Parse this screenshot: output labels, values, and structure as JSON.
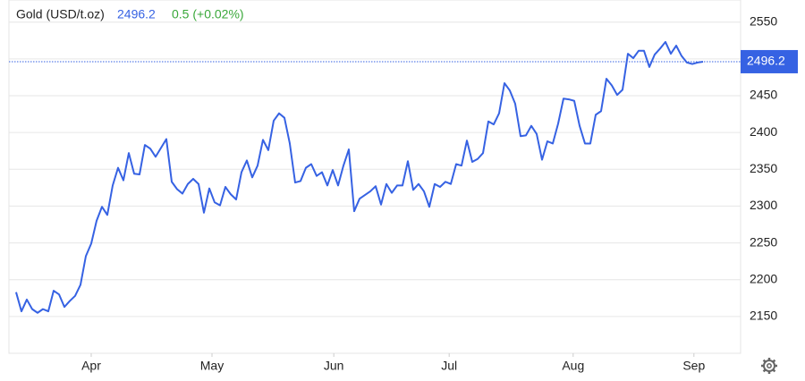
{
  "chart_data": {
    "type": "line",
    "title": "Gold (USD/t.oz)",
    "last_price": 2496.2,
    "change": "0.5 (+0.02%)",
    "series": [
      {
        "name": "Gold",
        "color": "#3662e3",
        "values": [
          2183,
          2157,
          2173,
          2160,
          2155,
          2160,
          2157,
          2185,
          2180,
          2163,
          2171,
          2178,
          2193,
          2232,
          2249,
          2280,
          2299,
          2288,
          2328,
          2352,
          2335,
          2372,
          2344,
          2343,
          2383,
          2378,
          2367,
          2379,
          2391,
          2333,
          2323,
          2317,
          2330,
          2337,
          2330,
          2291,
          2324,
          2305,
          2301,
          2326,
          2316,
          2309,
          2346,
          2362,
          2339,
          2355,
          2390,
          2376,
          2416,
          2426,
          2420,
          2385,
          2332,
          2334,
          2352,
          2357,
          2341,
          2346,
          2328,
          2349,
          2328,
          2355,
          2377,
          2293,
          2310,
          2315,
          2320,
          2327,
          2302,
          2330,
          2318,
          2328,
          2328,
          2361,
          2322,
          2330,
          2320,
          2299,
          2330,
          2326,
          2333,
          2330,
          2357,
          2355,
          2389,
          2360,
          2364,
          2372,
          2415,
          2411,
          2426,
          2467,
          2457,
          2439,
          2395,
          2396,
          2409,
          2398,
          2363,
          2388,
          2385,
          2412,
          2446,
          2445,
          2443,
          2409,
          2385,
          2385,
          2424,
          2429,
          2473,
          2464,
          2451,
          2458,
          2507,
          2501,
          2511,
          2511,
          2489,
          2506,
          2514,
          2523,
          2507,
          2518,
          2504,
          2495,
          2493,
          2495,
          2496.2
        ]
      }
    ],
    "xlim": [
      -1.33,
      135
    ],
    "xticks": [
      {
        "value": 14,
        "label": "Apr"
      },
      {
        "value": 36.5,
        "label": "May"
      },
      {
        "value": 59.2,
        "label": "Jun"
      },
      {
        "value": 80.7,
        "label": "Jul"
      },
      {
        "value": 103.8,
        "label": "Aug"
      },
      {
        "value": 126.3,
        "label": "Sep"
      }
    ],
    "ylim": [
      2100,
      2580
    ],
    "yticks": [
      2150,
      2200,
      2250,
      2300,
      2350,
      2400,
      2450,
      2500,
      2550
    ],
    "grid": true
  }
}
